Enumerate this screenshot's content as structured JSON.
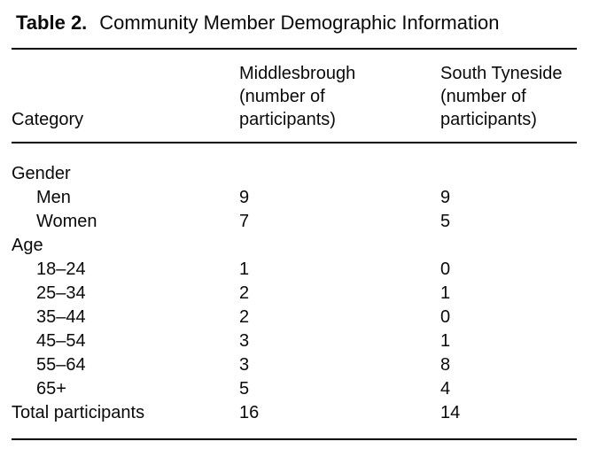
{
  "title": {
    "label": "Table 2.",
    "text": "Community Member Demographic Information"
  },
  "colors": {
    "text": "#0a0a0a",
    "rule": "#000000",
    "background": "#ffffff"
  },
  "table": {
    "header": {
      "category": "Category",
      "middlesbrough_lines": [
        "Middlesbrough",
        "(number of",
        "participants)"
      ],
      "south_tyneside_lines": [
        "South Tyneside",
        "(number of",
        "participants)"
      ]
    },
    "rows": [
      {
        "label": "Gender",
        "middlesbrough": "",
        "south_tyneside": ""
      },
      {
        "label": "Men",
        "middlesbrough": "9",
        "south_tyneside": "9"
      },
      {
        "label": "Women",
        "middlesbrough": "7",
        "south_tyneside": "5"
      },
      {
        "label": "Age",
        "middlesbrough": "",
        "south_tyneside": ""
      },
      {
        "label": "18–24",
        "middlesbrough": "1",
        "south_tyneside": "0"
      },
      {
        "label": "25–34",
        "middlesbrough": "2",
        "south_tyneside": "1"
      },
      {
        "label": "35–44",
        "middlesbrough": "2",
        "south_tyneside": "0"
      },
      {
        "label": "45–54",
        "middlesbrough": "3",
        "south_tyneside": "1"
      },
      {
        "label": "55–64",
        "middlesbrough": "3",
        "south_tyneside": "8"
      },
      {
        "label": "65+",
        "middlesbrough": "5",
        "south_tyneside": "4"
      },
      {
        "label": "Total participants",
        "middlesbrough": "16",
        "south_tyneside": "14"
      }
    ]
  }
}
